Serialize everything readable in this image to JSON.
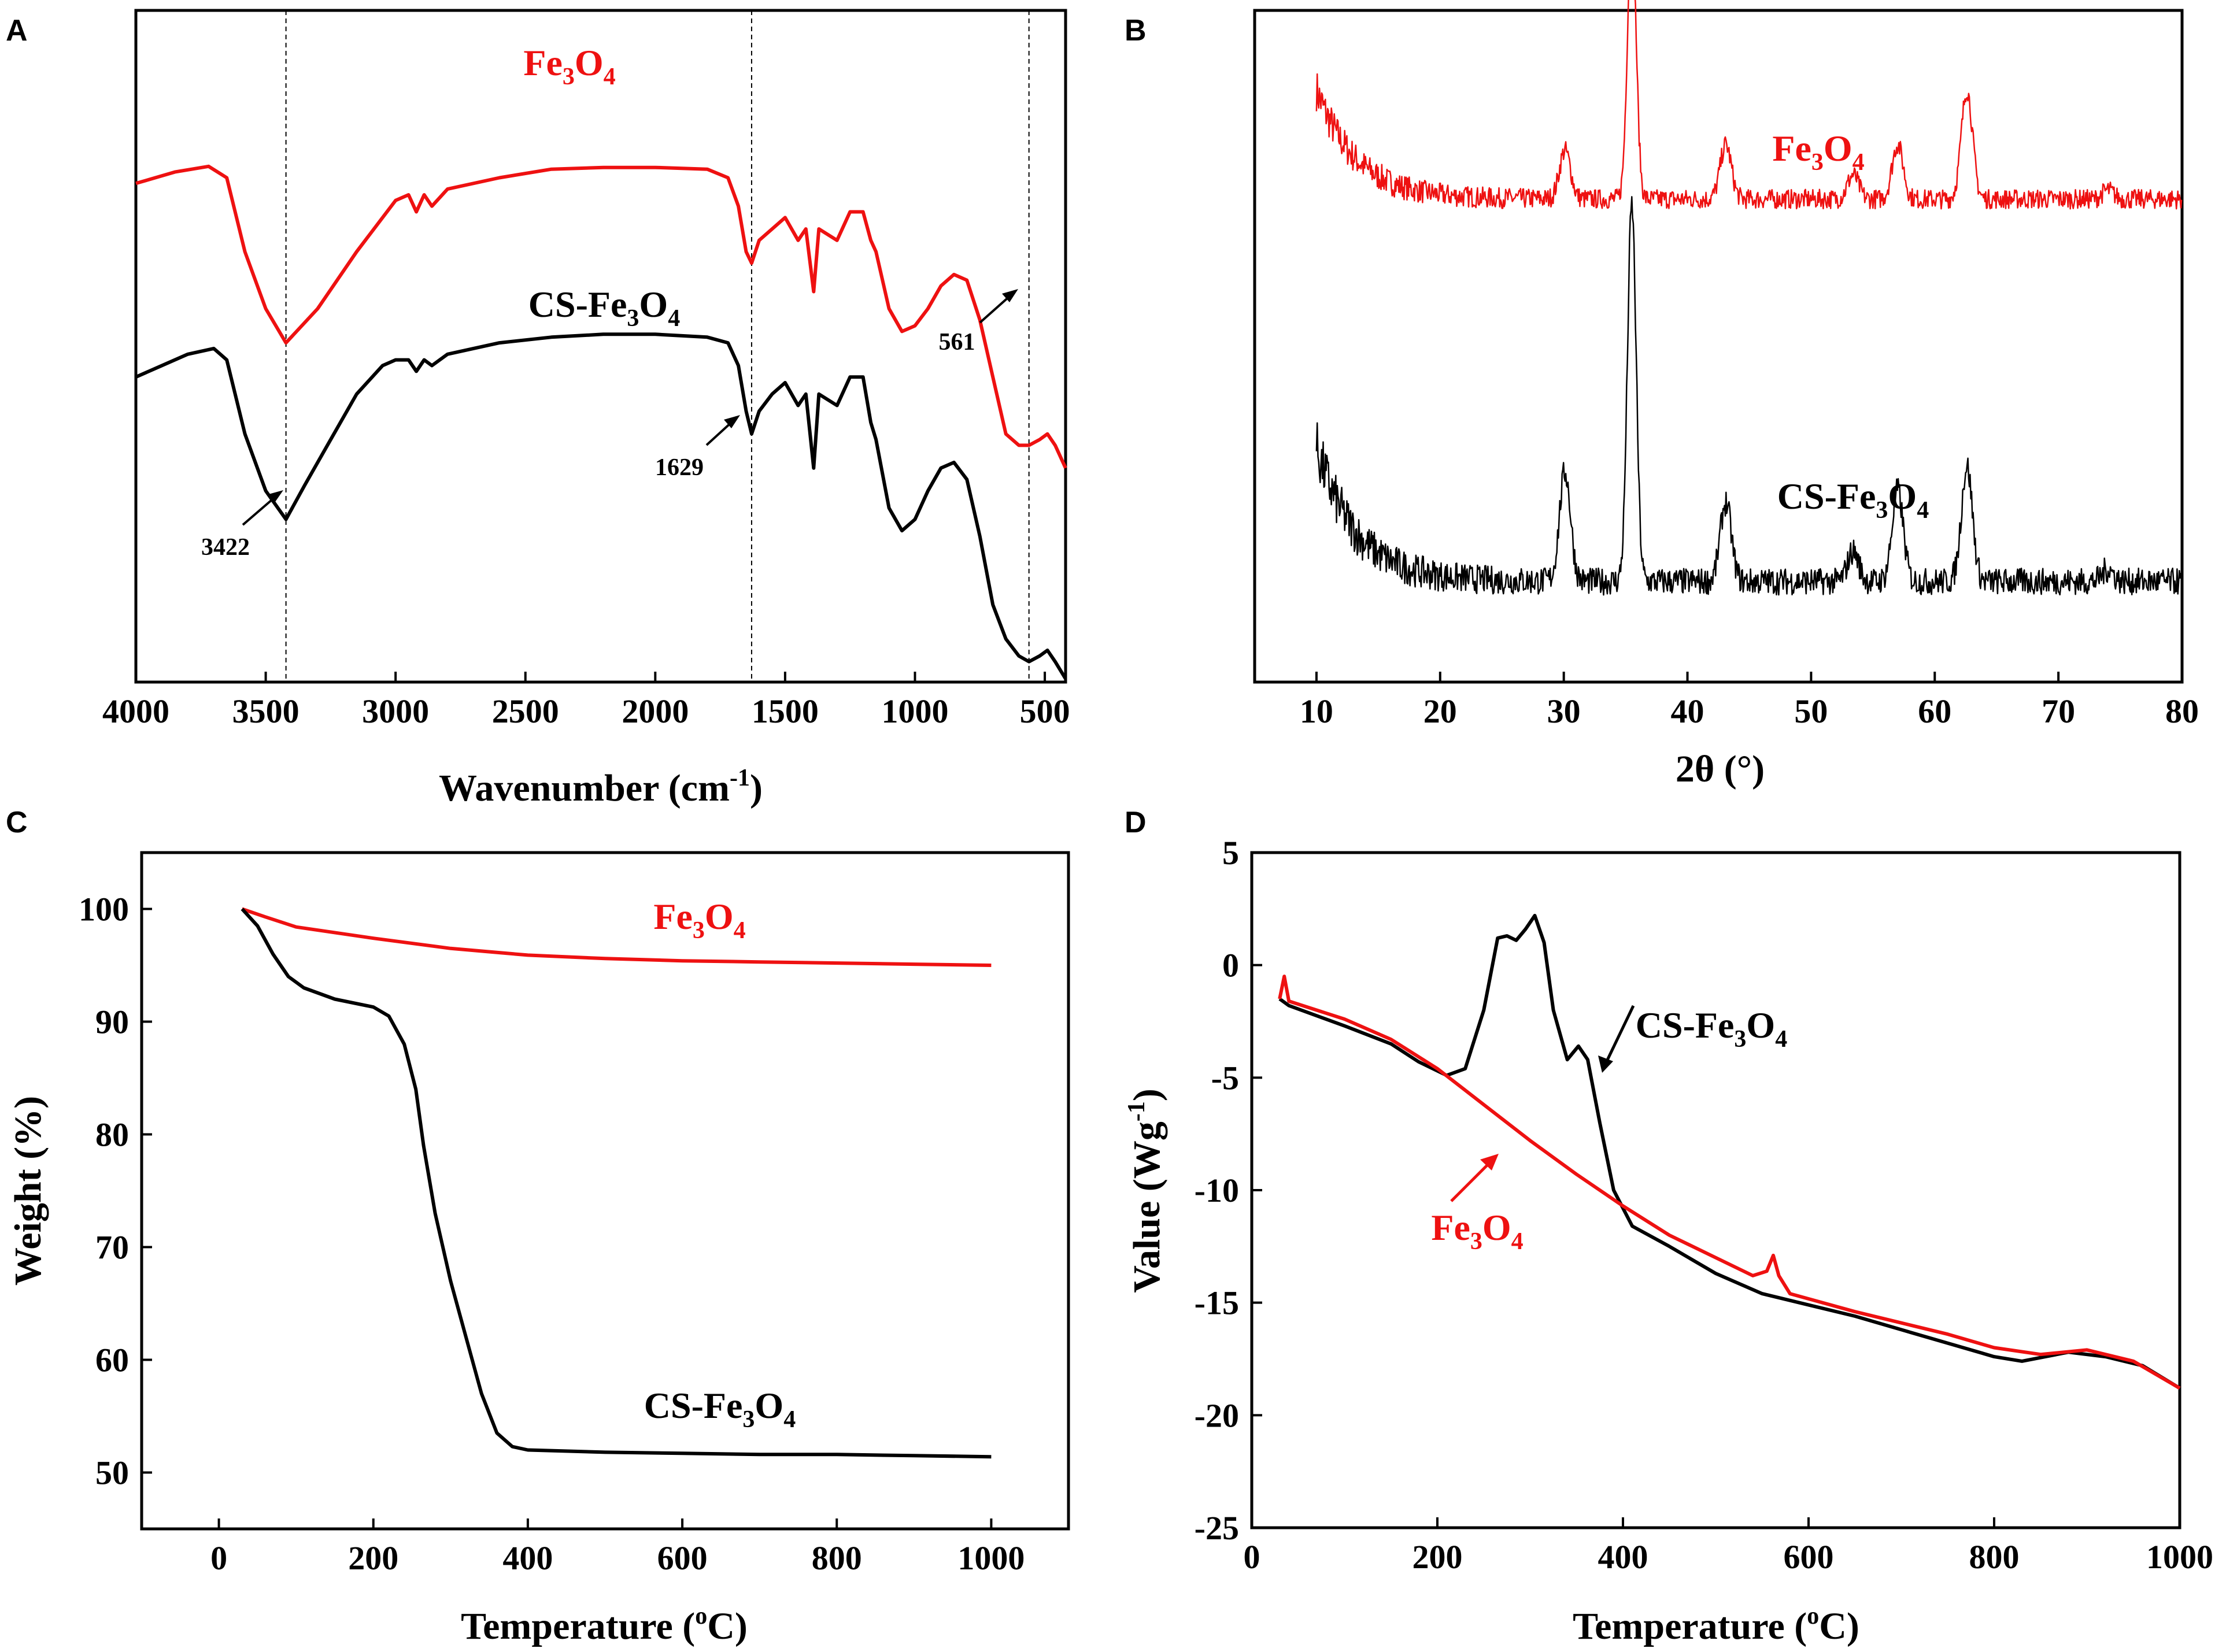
{
  "chart_data": [
    {
      "panel": "A",
      "type": "line",
      "xlabel": "Wavenumber (cm",
      "xlabel_sup": "-1",
      "xlabel_close": ")",
      "xlim": [
        4000,
        420
      ],
      "ylim": [
        0,
        100
      ],
      "xticks": [
        "4000",
        "3500",
        "3000",
        "2500",
        "2000",
        "1500",
        "1000",
        "500"
      ],
      "reference_lines": [
        3422,
        1629,
        561
      ],
      "annotations": [
        {
          "text": "3422",
          "x": 3422
        },
        {
          "text": "1629",
          "x": 1629
        },
        {
          "text": "561",
          "x": 561
        }
      ],
      "series": [
        {
          "name": "Fe3O4",
          "color": "#ee1111",
          "points": [
            [
              4000,
              82
            ],
            [
              3850,
              84
            ],
            [
              3720,
              85
            ],
            [
              3650,
              83
            ],
            [
              3580,
              70
            ],
            [
              3500,
              60
            ],
            [
              3422,
              54
            ],
            [
              3300,
              60
            ],
            [
              3150,
              70
            ],
            [
              3000,
              79
            ],
            [
              2950,
              80
            ],
            [
              2920,
              77
            ],
            [
              2890,
              80
            ],
            [
              2860,
              78
            ],
            [
              2800,
              81
            ],
            [
              2600,
              83
            ],
            [
              2400,
              84.5
            ],
            [
              2200,
              84.8
            ],
            [
              2000,
              84.8
            ],
            [
              1800,
              84.5
            ],
            [
              1720,
              83
            ],
            [
              1680,
              78
            ],
            [
              1650,
              70
            ],
            [
              1629,
              68
            ],
            [
              1600,
              72
            ],
            [
              1550,
              74
            ],
            [
              1500,
              76
            ],
            [
              1450,
              72
            ],
            [
              1420,
              74
            ],
            [
              1390,
              63
            ],
            [
              1370,
              74
            ],
            [
              1300,
              72
            ],
            [
              1250,
              77
            ],
            [
              1200,
              77
            ],
            [
              1170,
              72
            ],
            [
              1150,
              70
            ],
            [
              1100,
              60
            ],
            [
              1050,
              56
            ],
            [
              1000,
              57
            ],
            [
              950,
              60
            ],
            [
              900,
              64
            ],
            [
              850,
              66
            ],
            [
              800,
              65
            ],
            [
              750,
              58
            ],
            [
              700,
              48
            ],
            [
              650,
              38
            ],
            [
              600,
              36
            ],
            [
              561,
              36
            ],
            [
              520,
              37
            ],
            [
              490,
              38
            ],
            [
              460,
              36
            ],
            [
              420,
              32
            ]
          ]
        },
        {
          "name": "CS-Fe3O4",
          "color": "#000000",
          "points": [
            [
              4000,
              48
            ],
            [
              3900,
              50
            ],
            [
              3800,
              52
            ],
            [
              3700,
              53
            ],
            [
              3650,
              51
            ],
            [
              3580,
              38
            ],
            [
              3500,
              28
            ],
            [
              3422,
              23
            ],
            [
              3350,
              29
            ],
            [
              3250,
              37
            ],
            [
              3150,
              45
            ],
            [
              3050,
              50
            ],
            [
              3000,
              51
            ],
            [
              2950,
              51
            ],
            [
              2920,
              49
            ],
            [
              2890,
              51
            ],
            [
              2860,
              50
            ],
            [
              2800,
              52
            ],
            [
              2600,
              54
            ],
            [
              2400,
              55
            ],
            [
              2200,
              55.5
            ],
            [
              2000,
              55.5
            ],
            [
              1800,
              55
            ],
            [
              1720,
              54
            ],
            [
              1680,
              50
            ],
            [
              1650,
              42
            ],
            [
              1629,
              38
            ],
            [
              1600,
              42
            ],
            [
              1550,
              45
            ],
            [
              1500,
              47
            ],
            [
              1450,
              43
            ],
            [
              1420,
              45
            ],
            [
              1390,
              32
            ],
            [
              1370,
              45
            ],
            [
              1300,
              43
            ],
            [
              1250,
              48
            ],
            [
              1200,
              48
            ],
            [
              1170,
              40
            ],
            [
              1150,
              37
            ],
            [
              1100,
              25
            ],
            [
              1050,
              21
            ],
            [
              1000,
              23
            ],
            [
              950,
              28
            ],
            [
              900,
              32
            ],
            [
              850,
              33
            ],
            [
              800,
              30
            ],
            [
              750,
              20
            ],
            [
              700,
              8
            ],
            [
              650,
              2
            ],
            [
              600,
              -1
            ],
            [
              561,
              -2
            ],
            [
              520,
              -1
            ],
            [
              490,
              0
            ],
            [
              460,
              -2
            ],
            [
              420,
              -5
            ]
          ]
        }
      ]
    },
    {
      "panel": "B",
      "type": "line",
      "xlabel": "2θ (°)",
      "xlim": [
        5,
        80
      ],
      "ylim": [
        0,
        100
      ],
      "xticks": [
        "10",
        "20",
        "30",
        "40",
        "50",
        "60",
        "70",
        "80"
      ],
      "series": [
        {
          "name": "Fe3O4",
          "color": "#ee1111",
          "baseline": 71,
          "start_level": 89,
          "noise": 1.6,
          "peaks": [
            [
              30.1,
              8
            ],
            [
              35.5,
              45
            ],
            [
              43.1,
              9
            ],
            [
              53.4,
              4
            ],
            [
              57.0,
              9
            ],
            [
              62.6,
              18
            ],
            [
              74.0,
              1.5
            ]
          ]
        },
        {
          "name": "CS-Fe3O4",
          "color": "#000000",
          "baseline": 8,
          "start_level": 30,
          "noise": 2.2,
          "peaks": [
            [
              30.1,
              18
            ],
            [
              35.5,
              62
            ],
            [
              43.1,
              13
            ],
            [
              53.4,
              5
            ],
            [
              57.0,
              15
            ],
            [
              62.6,
              19
            ],
            [
              74.0,
              2
            ]
          ]
        }
      ]
    },
    {
      "panel": "C",
      "type": "line",
      "xlabel": "Temperature (",
      "xlabel_sup": "o",
      "xlabel_close": "C)",
      "ylabel": "Weight (%)",
      "xlim": [
        -100,
        1100
      ],
      "ylim": [
        45,
        105
      ],
      "xticks": [
        0,
        200,
        400,
        600,
        800,
        1000
      ],
      "yticks": [
        50,
        60,
        70,
        80,
        90,
        100
      ],
      "series": [
        {
          "name": "Fe3O4",
          "color": "#ee1111",
          "points": [
            [
              30,
              100
            ],
            [
              60,
              99.3
            ],
            [
              100,
              98.4
            ],
            [
              200,
              97.4
            ],
            [
              300,
              96.5
            ],
            [
              400,
              95.9
            ],
            [
              500,
              95.6
            ],
            [
              600,
              95.4
            ],
            [
              700,
              95.3
            ],
            [
              800,
              95.2
            ],
            [
              900,
              95.1
            ],
            [
              1000,
              95.0
            ]
          ]
        },
        {
          "name": "CS-Fe3O4",
          "color": "#000000",
          "points": [
            [
              30,
              100
            ],
            [
              50,
              98.5
            ],
            [
              70,
              96
            ],
            [
              90,
              94
            ],
            [
              110,
              93
            ],
            [
              150,
              92
            ],
            [
              200,
              91.3
            ],
            [
              220,
              90.5
            ],
            [
              240,
              88
            ],
            [
              255,
              84
            ],
            [
              265,
              79
            ],
            [
              280,
              73
            ],
            [
              300,
              67
            ],
            [
              320,
              62
            ],
            [
              340,
              57
            ],
            [
              360,
              53.5
            ],
            [
              380,
              52.3
            ],
            [
              400,
              52
            ],
            [
              500,
              51.8
            ],
            [
              600,
              51.7
            ],
            [
              700,
              51.6
            ],
            [
              800,
              51.6
            ],
            [
              900,
              51.5
            ],
            [
              1000,
              51.4
            ]
          ]
        }
      ]
    },
    {
      "panel": "D",
      "type": "line",
      "xlabel": "Temperature (",
      "xlabel_sup": "o",
      "xlabel_close": "C)",
      "ylabel": "Value (Wg",
      "ylabel_sup": "-1",
      "ylabel_close": ")",
      "xlim": [
        0,
        1000
      ],
      "ylim": [
        -25,
        5
      ],
      "xticks": [
        0,
        200,
        400,
        600,
        800,
        1000
      ],
      "yticks": [
        5,
        0,
        -5,
        -10,
        -15,
        -20,
        -25
      ],
      "series": [
        {
          "name": "Fe3O4",
          "color": "#ee1111",
          "points": [
            [
              30,
              -1.5
            ],
            [
              35,
              -0.5
            ],
            [
              40,
              -1.6
            ],
            [
              100,
              -2.4
            ],
            [
              150,
              -3.3
            ],
            [
              200,
              -4.6
            ],
            [
              250,
              -6.2
            ],
            [
              300,
              -7.8
            ],
            [
              350,
              -9.3
            ],
            [
              400,
              -10.7
            ],
            [
              450,
              -12.0
            ],
            [
              500,
              -13.0
            ],
            [
              540,
              -13.8
            ],
            [
              555,
              -13.6
            ],
            [
              562,
              -12.9
            ],
            [
              568,
              -13.8
            ],
            [
              580,
              -14.6
            ],
            [
              650,
              -15.4
            ],
            [
              700,
              -15.9
            ],
            [
              750,
              -16.4
            ],
            [
              800,
              -17.0
            ],
            [
              850,
              -17.3
            ],
            [
              900,
              -17.1
            ],
            [
              950,
              -17.6
            ],
            [
              1000,
              -18.8
            ]
          ]
        },
        {
          "name": "CS-Fe3O4",
          "color": "#000000",
          "points": [
            [
              30,
              -1.5
            ],
            [
              40,
              -1.8
            ],
            [
              100,
              -2.7
            ],
            [
              150,
              -3.5
            ],
            [
              180,
              -4.3
            ],
            [
              210,
              -4.9
            ],
            [
              230,
              -4.6
            ],
            [
              250,
              -2.0
            ],
            [
              265,
              1.2
            ],
            [
              275,
              1.3
            ],
            [
              285,
              1.1
            ],
            [
              295,
              1.6
            ],
            [
              305,
              2.2
            ],
            [
              315,
              1.0
            ],
            [
              325,
              -2.0
            ],
            [
              340,
              -4.2
            ],
            [
              352,
              -3.6
            ],
            [
              362,
              -4.2
            ],
            [
              375,
              -7.0
            ],
            [
              390,
              -10.0
            ],
            [
              410,
              -11.6
            ],
            [
              450,
              -12.5
            ],
            [
              500,
              -13.7
            ],
            [
              550,
              -14.6
            ],
            [
              600,
              -15.1
            ],
            [
              650,
              -15.6
            ],
            [
              700,
              -16.2
            ],
            [
              750,
              -16.8
            ],
            [
              800,
              -17.4
            ],
            [
              830,
              -17.6
            ],
            [
              880,
              -17.2
            ],
            [
              920,
              -17.4
            ],
            [
              960,
              -17.8
            ],
            [
              1000,
              -18.8
            ]
          ]
        }
      ]
    }
  ],
  "panels": {
    "a": {
      "letter": "A",
      "red_label": "Fe",
      "red_sub1": "3",
      "red_mid": "O",
      "red_sub2": "4",
      "black_label": "CS-Fe",
      "black_sub1": "3",
      "black_mid": "O",
      "black_sub2": "4"
    },
    "b": {
      "letter": "B",
      "red_label": "Fe",
      "red_sub1": "3",
      "red_mid": "O",
      "red_sub2": "4",
      "black_label": "CS-Fe",
      "black_sub1": "3",
      "black_mid": "O",
      "black_sub2": "4"
    },
    "c": {
      "letter": "C",
      "red_label": "Fe",
      "red_sub1": "3",
      "red_mid": "O",
      "red_sub2": "4",
      "black_label": "CS-Fe",
      "black_sub1": "3",
      "black_mid": "O",
      "black_sub2": "4"
    },
    "d": {
      "letter": "D",
      "red_label": "Fe",
      "red_sub1": "3",
      "red_mid": "O",
      "red_sub2": "4",
      "black_label": "CS-Fe",
      "black_sub1": "3",
      "black_mid": "O",
      "black_sub2": "4"
    }
  }
}
